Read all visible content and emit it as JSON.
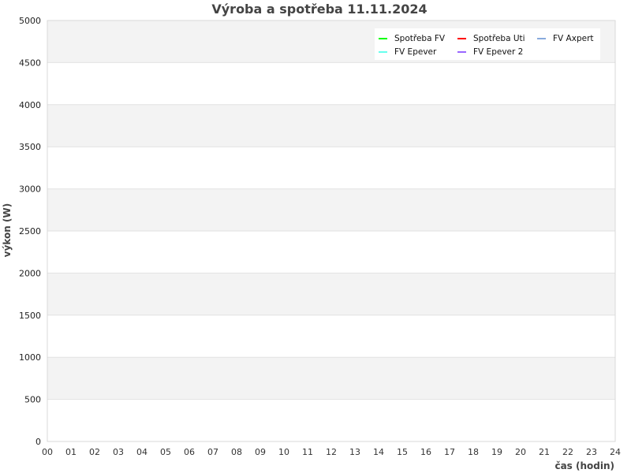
{
  "chart_data": {
    "type": "line",
    "title": "Výroba a spotřeba 11.11.2024",
    "xlabel": "čas (hodin)",
    "ylabel": "výkon (W)",
    "xlim": [
      0,
      24
    ],
    "ylim": [
      0,
      5000
    ],
    "x_ticks": [
      "00",
      "01",
      "02",
      "03",
      "04",
      "05",
      "06",
      "07",
      "08",
      "09",
      "10",
      "11",
      "12",
      "13",
      "14",
      "15",
      "16",
      "17",
      "18",
      "19",
      "20",
      "21",
      "22",
      "23",
      "24"
    ],
    "y_ticks": [
      "0",
      "500",
      "1000",
      "1500",
      "2000",
      "2500",
      "3000",
      "3500",
      "4000",
      "4500",
      "5000"
    ],
    "grid": true,
    "legend_position": "top-right",
    "series": [
      {
        "name": "Spotřeba FV",
        "color": "#00ff00",
        "values": []
      },
      {
        "name": "Spotřeba Uti",
        "color": "#ff0000",
        "values": []
      },
      {
        "name": "FV Axpert",
        "color": "#88aadd",
        "values": []
      },
      {
        "name": "FV Epever",
        "color": "#66ffee",
        "values": []
      },
      {
        "name": "FV Epever 2",
        "color": "#9966ff",
        "values": []
      }
    ]
  }
}
